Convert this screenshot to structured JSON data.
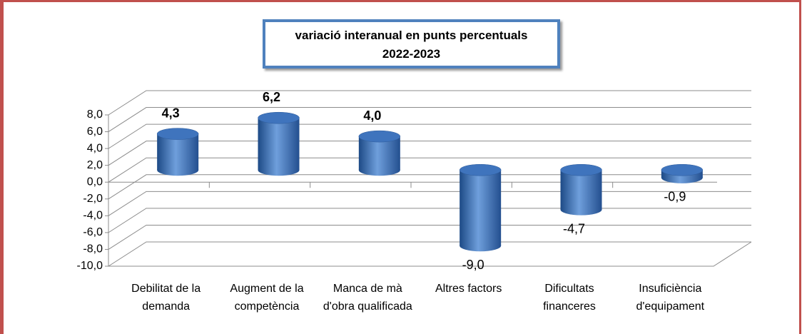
{
  "chart_data": {
    "type": "bar3d",
    "title": "variació interanual en punts percentuals",
    "subtitle": "2022-2023",
    "categories": [
      "Debilitat de la demanda",
      "Augment de la competència",
      "Manca de mà d'obra qualificada",
      "Altres factors",
      "Dificultats financeres",
      "Insuficiència d'equipament"
    ],
    "values": [
      4.3,
      6.2,
      4.0,
      -9.0,
      -4.7,
      -0.9
    ],
    "value_labels": [
      "4,3",
      "6,2",
      "4,0",
      "-9,0",
      "-4,7",
      "-0,9"
    ],
    "color": "#3a6fb5",
    "ylim": [
      -10,
      8
    ],
    "yticks": [
      {
        "value": -10,
        "label": "-10,0"
      },
      {
        "value": -8,
        "label": "-8,0"
      },
      {
        "value": -6,
        "label": "-6,0"
      },
      {
        "value": -4,
        "label": "-4,0"
      },
      {
        "value": -2,
        "label": "-2,0"
      },
      {
        "value": 0,
        "label": "0,0"
      },
      {
        "value": 2,
        "label": "2,0"
      },
      {
        "value": 4,
        "label": "4,0"
      },
      {
        "value": 6,
        "label": "6,0"
      },
      {
        "value": 8,
        "label": "8,0"
      }
    ],
    "grid": true
  }
}
